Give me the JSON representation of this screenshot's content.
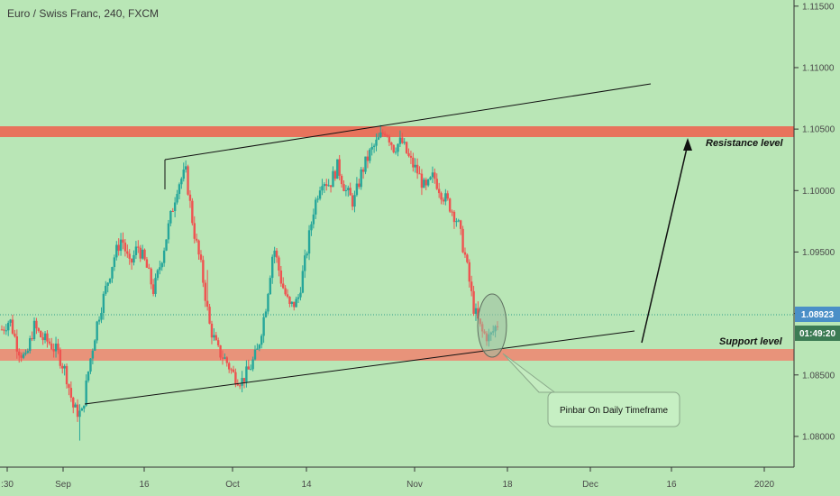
{
  "header": {
    "title": "Euro / Swiss Franc, 240, FXCM"
  },
  "colors": {
    "background": "#b9e6b6",
    "bull": "#26a69a",
    "bear": "#ef5350",
    "resistance_zone": "#e8735c",
    "support_zone": "#e8937a",
    "price_tag": "#4a8fc7",
    "countdown_tag": "#3c7b54"
  },
  "chart_data": {
    "type": "candlestick",
    "title": "Euro / Swiss Franc, 240, FXCM",
    "x_ticks": [
      ":30",
      "Sep",
      "16",
      "Oct",
      "14",
      "Nov",
      "18",
      "Dec",
      "16",
      "2020"
    ],
    "y_ticks": [
      "1.11500",
      "1.11000",
      "1.10500",
      "1.10000",
      "1.09500",
      "1.09000",
      "1.08500",
      "1.08000"
    ],
    "ylim": [
      1.0775,
      1.1155
    ],
    "current_price": "1.08923",
    "countdown": "01:49:20",
    "price_path": [
      1.0887,
      1.0895,
      1.0872,
      1.0862,
      1.089,
      1.088,
      1.0876,
      1.0868,
      1.0852,
      1.0822,
      1.0818,
      1.086,
      1.0895,
      1.092,
      1.0945,
      1.0962,
      1.0938,
      1.0955,
      1.094,
      1.0918,
      1.0945,
      1.0975,
      1.1005,
      1.1015,
      1.0968,
      1.0935,
      1.089,
      1.087,
      1.0862,
      1.085,
      1.0845,
      1.0855,
      1.087,
      1.0905,
      1.0955,
      1.0925,
      1.0905,
      1.091,
      1.0945,
      1.0985,
      1.101,
      1.1005,
      1.102,
      1.1,
      1.099,
      1.1015,
      1.103,
      1.104,
      1.105,
      1.1035,
      1.104,
      1.1025,
      1.1015,
      1.1,
      1.1012,
      1.0998,
      1.0988,
      1.0975,
      1.0945,
      1.0905,
      1.0885,
      1.088,
      1.0892
    ],
    "resistance_zone": [
      1.104,
      1.1046
    ],
    "support_zone": [
      1.086,
      1.0867
    ],
    "upper_trendline": {
      "from": [
        "Sep 20",
        1.1021
      ],
      "to": [
        "Dec 5",
        1.1084
      ]
    },
    "lower_trendline": {
      "from": [
        "Sep 5",
        1.0818
      ],
      "to": [
        "Dec 4",
        1.0878
      ]
    },
    "annotations": {
      "resistance": "Resistance level",
      "support": "Support level",
      "callout": "Pinbar On Daily Timeframe"
    }
  }
}
